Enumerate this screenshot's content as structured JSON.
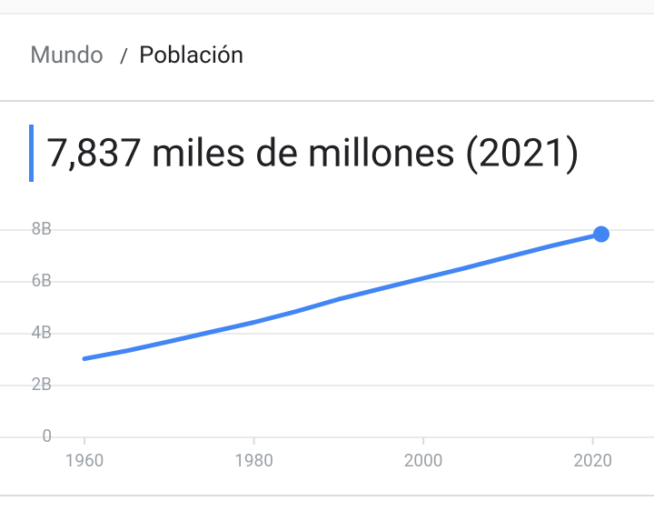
{
  "breadcrumb": {
    "parent": "Mundo",
    "separator": "/",
    "current": "Población"
  },
  "chart_data": {
    "type": "line",
    "title": "7,837 miles de millones (2021)",
    "x": [
      1960,
      1965,
      1970,
      1975,
      1980,
      1985,
      1990,
      1995,
      2000,
      2005,
      2010,
      2015,
      2020,
      2021
    ],
    "series": [
      {
        "color": "#4285f4",
        "values": [
          3.03,
          3.34,
          3.7,
          4.07,
          4.44,
          4.86,
          5.33,
          5.74,
          6.14,
          6.54,
          6.96,
          7.38,
          7.76,
          7.84
        ]
      }
    ],
    "xlim": [
      1960,
      2021
    ],
    "xticks": [
      1960,
      1980,
      2000,
      2020
    ],
    "ylim": [
      0,
      8
    ],
    "yticks": [
      0,
      {
        "value": 2,
        "label": "2B"
      },
      {
        "value": 4,
        "label": "4B"
      },
      {
        "value": 6,
        "label": "6B"
      },
      {
        "value": 8,
        "label": "8B"
      }
    ],
    "grid": true,
    "highlight_last": true
  }
}
